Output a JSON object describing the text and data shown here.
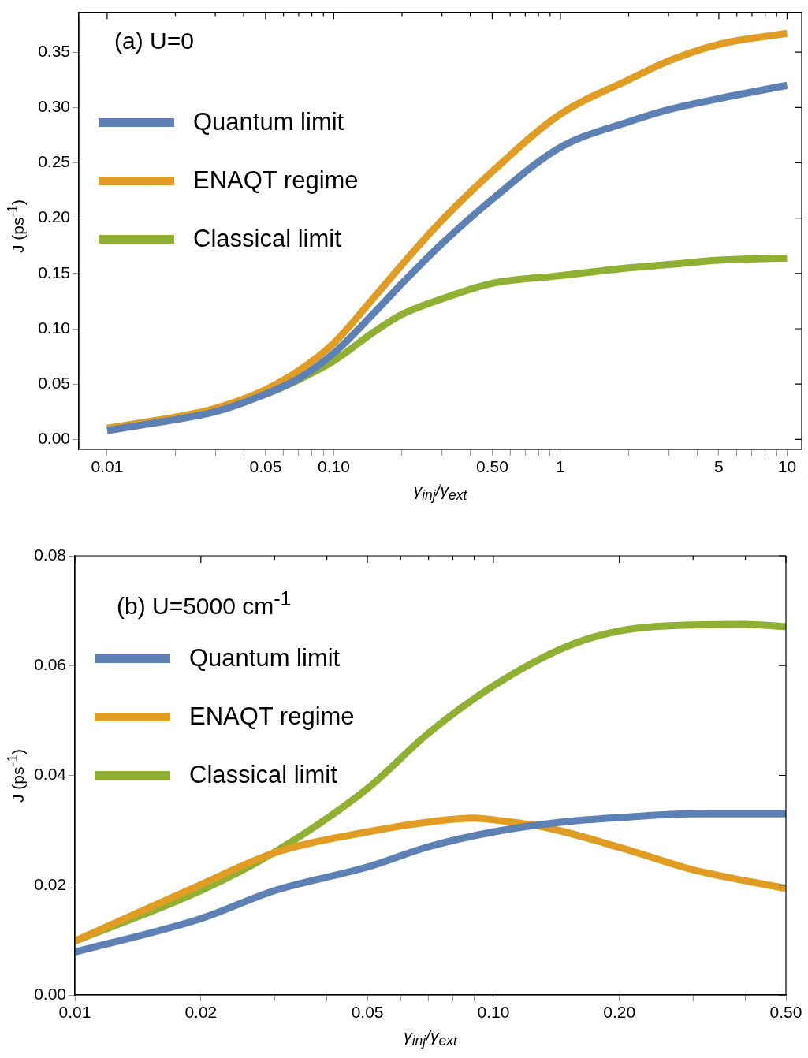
{
  "chart_data": [
    {
      "type": "line",
      "xlabel": "γ$_{inj}$/γ$_{ext}$",
      "ylabel": "J (ps$^{-1}$)",
      "annotations": [
        "(a) U=0"
      ],
      "log": "x",
      "legend": "top left",
      "grid": false,
      "marker": "none",
      "line_style": "solid",
      "xlim": [
        0.0075,
        11.6
      ],
      "ylim": [
        -0.009,
        0.386
      ],
      "xticks": [
        {
          "value": 0.01,
          "label": "0.01"
        },
        {
          "value": 0.02,
          "label": null
        },
        {
          "value": 0.03,
          "label": null
        },
        {
          "value": 0.04,
          "label": null
        },
        {
          "value": 0.05,
          "label": "0.05"
        },
        {
          "value": 0.06,
          "label": null
        },
        {
          "value": 0.07,
          "label": null
        },
        {
          "value": 0.08,
          "label": null
        },
        {
          "value": 0.09,
          "label": null
        },
        {
          "value": 0.1,
          "label": "0.10"
        },
        {
          "value": 0.2,
          "label": null
        },
        {
          "value": 0.3,
          "label": null
        },
        {
          "value": 0.4,
          "label": null
        },
        {
          "value": 0.5,
          "label": "0.50"
        },
        {
          "value": 0.6,
          "label": null
        },
        {
          "value": 0.7,
          "label": null
        },
        {
          "value": 0.8,
          "label": null
        },
        {
          "value": 0.9,
          "label": null
        },
        1,
        {
          "value": 2,
          "label": null
        },
        {
          "value": 3,
          "label": null
        },
        {
          "value": 4,
          "label": null
        },
        5,
        {
          "value": 6,
          "label": null
        },
        {
          "value": 7,
          "label": null
        },
        {
          "value": 8,
          "label": null
        },
        {
          "value": 9,
          "label": null
        },
        10
      ],
      "yticks": [
        {
          "value": 0,
          "label": "0.00"
        },
        0.05,
        {
          "value": 0.1,
          "label": "0.10"
        },
        0.15,
        {
          "value": 0.2,
          "label": "0.20"
        },
        0.25,
        {
          "value": 0.3,
          "label": "0.30"
        },
        0.35
      ],
      "x": [
        0.01,
        0.02,
        0.03,
        0.05,
        0.07,
        0.1,
        0.15,
        0.2,
        0.3,
        0.5,
        1,
        2,
        3,
        5,
        10
      ],
      "series": [
        {
          "name": "Quantum limit",
          "color": "#5e81b5",
          "values": [
            0.008,
            0.018,
            0.025,
            0.041,
            0.055,
            0.078,
            0.114,
            0.141,
            0.177,
            0.217,
            0.264,
            0.287,
            0.298,
            0.308,
            0.32
          ]
        },
        {
          "name": "ENAQT regime",
          "color": "#e19c24",
          "values": [
            0.01,
            0.02,
            0.028,
            0.045,
            0.062,
            0.087,
            0.128,
            0.158,
            0.198,
            0.242,
            0.294,
            0.325,
            0.342,
            0.357,
            0.367
          ]
        },
        {
          "name": "Classical limit",
          "color": "#8fb032",
          "values": [
            0.01,
            0.02,
            0.027,
            0.041,
            0.054,
            0.071,
            0.097,
            0.113,
            0.127,
            0.141,
            0.148,
            0.155,
            0.158,
            0.162,
            0.164
          ]
        }
      ]
    },
    {
      "type": "line",
      "xlabel": "γ$_{inj}$/γ$_{ext}$",
      "ylabel": "J (ps$^{-1}$)",
      "annotations": [
        "(b) U=5000 cm$^{-1}$"
      ],
      "log": "x",
      "legend": "top left",
      "grid": false,
      "marker": "none",
      "line_style": "solid",
      "xlim": [
        0.01,
        0.5
      ],
      "ylim": [
        0,
        0.08
      ],
      "xticks": [
        {
          "value": 0.01,
          "label": "0.01"
        },
        {
          "value": 0.02,
          "label": "0.02"
        },
        {
          "value": 0.03,
          "label": null
        },
        {
          "value": 0.04,
          "label": null
        },
        {
          "value": 0.05,
          "label": "0.05"
        },
        {
          "value": 0.06,
          "label": null
        },
        {
          "value": 0.07,
          "label": null
        },
        {
          "value": 0.08,
          "label": null
        },
        {
          "value": 0.09,
          "label": null
        },
        {
          "value": 0.1,
          "label": "0.10"
        },
        {
          "value": 0.2,
          "label": "0.20"
        },
        {
          "value": 0.3,
          "label": null
        },
        {
          "value": 0.4,
          "label": null
        },
        {
          "value": 0.5,
          "label": "0.50"
        }
      ],
      "yticks": [
        {
          "value": 0,
          "label": "0.00"
        },
        0.02,
        0.04,
        0.06,
        0.08
      ],
      "series": [
        {
          "name": "Quantum limit",
          "color": "#5e81b5",
          "x": [
            0.01,
            0.02,
            0.03,
            0.05,
            0.07,
            0.1,
            0.15,
            0.2,
            0.3,
            0.5
          ],
          "values": [
            0.0078,
            0.0139,
            0.019,
            0.0233,
            0.027,
            0.0297,
            0.0316,
            0.0323,
            0.033,
            0.033
          ]
        },
        {
          "name": "ENAQT regime",
          "color": "#e19c24",
          "x": [
            0.01,
            0.02,
            0.03,
            0.05,
            0.07,
            0.09,
            0.1,
            0.13,
            0.2,
            0.3,
            0.5
          ],
          "values": [
            0.0098,
            0.0201,
            0.0259,
            0.0297,
            0.0315,
            0.0322,
            0.0319,
            0.0307,
            0.0269,
            0.0228,
            0.0194
          ]
        },
        {
          "name": "Classical limit",
          "color": "#8fb032",
          "x": [
            0.01,
            0.02,
            0.03,
            0.05,
            0.07,
            0.1,
            0.15,
            0.2,
            0.3,
            0.4,
            0.5
          ],
          "values": [
            0.0098,
            0.019,
            0.026,
            0.0376,
            0.0477,
            0.0563,
            0.0635,
            0.0663,
            0.0674,
            0.0675,
            0.0671
          ]
        }
      ]
    }
  ]
}
